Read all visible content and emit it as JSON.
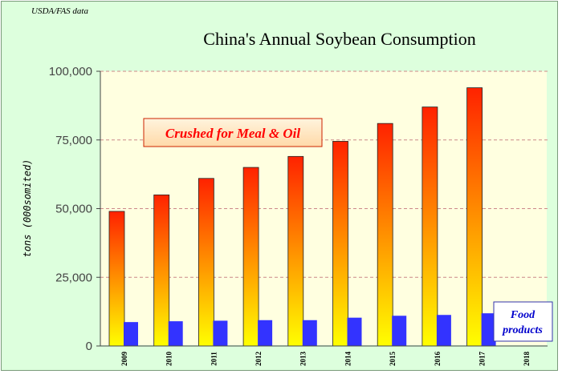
{
  "source_note": "USDA/FAS data",
  "chart_data": {
    "type": "bar",
    "title": "China's Annual Soybean Consumption",
    "xlabel": "",
    "ylabel": "tons (000somited)",
    "ylim": [
      0,
      100000
    ],
    "yticks": [
      0,
      25000,
      50000,
      75000,
      100000
    ],
    "ytick_labels": [
      "0",
      "25,000",
      "50,000",
      "75,000",
      "100,000"
    ],
    "grid": "horizontal dashed",
    "categories": [
      "2009",
      "2010",
      "2011",
      "2012",
      "2013",
      "2014",
      "2015",
      "2016",
      "2017",
      "2018"
    ],
    "series": [
      {
        "name": "Crushed for Meal & Oil",
        "values": [
          49000,
          55000,
          61000,
          65000,
          69000,
          74500,
          81000,
          87000,
          94000,
          null
        ],
        "color_top": "#ff2200",
        "color_bottom": "#ffff00"
      },
      {
        "name": "Food products",
        "values": [
          8700,
          9000,
          9200,
          9400,
          9400,
          10300,
          11000,
          11300,
          11900,
          null
        ],
        "color": "#3333ff"
      }
    ],
    "annotations": [
      {
        "text": "Crushed for Meal & Oil",
        "series": "Crushed for Meal & Oil"
      },
      {
        "text_lines": [
          "Food",
          "products"
        ],
        "series": "Food products"
      }
    ]
  },
  "colors": {
    "frame_bg": "#ddffdd",
    "plot_bg": "#ffffe0",
    "grid": "#cc8888",
    "annotation_red": "#ff0000",
    "annotation_blue": "#0000cc"
  }
}
